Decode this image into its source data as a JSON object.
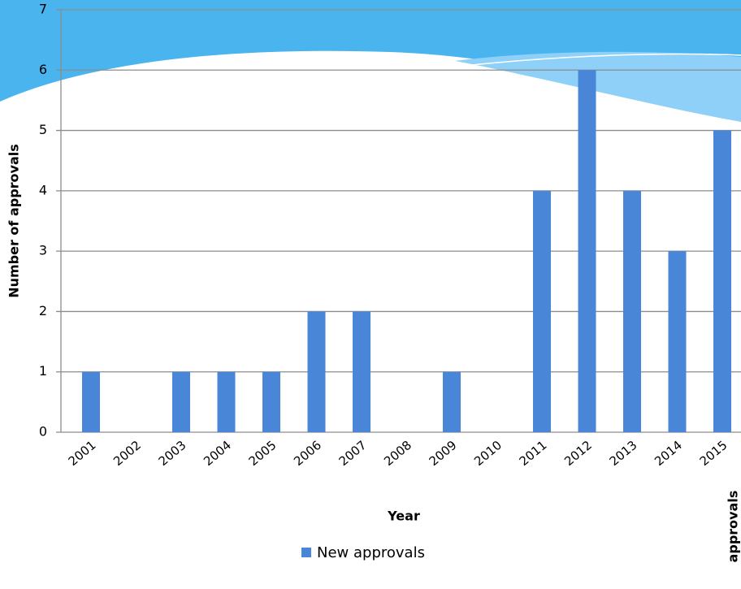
{
  "chart_data": {
    "type": "bar",
    "x_label": "Year",
    "y_label": "Number of approvals",
    "annotation": "approvals",
    "categories": [
      "2001",
      "2002",
      "2003",
      "2004",
      "2005",
      "2006",
      "2007",
      "2008",
      "2009",
      "2010",
      "2011",
      "2012",
      "2013",
      "2014",
      "2015"
    ],
    "series": [
      {
        "name": "New approvals",
        "color": "#4a86d8",
        "values": [
          1,
          0,
          1,
          1,
          1,
          2,
          2,
          0,
          1,
          0,
          4,
          6,
          4,
          3,
          5
        ]
      }
    ],
    "ylim": [
      0,
      7
    ],
    "yticks": [
      0,
      1,
      2,
      3,
      4,
      5,
      6,
      7
    ],
    "grid": true
  }
}
